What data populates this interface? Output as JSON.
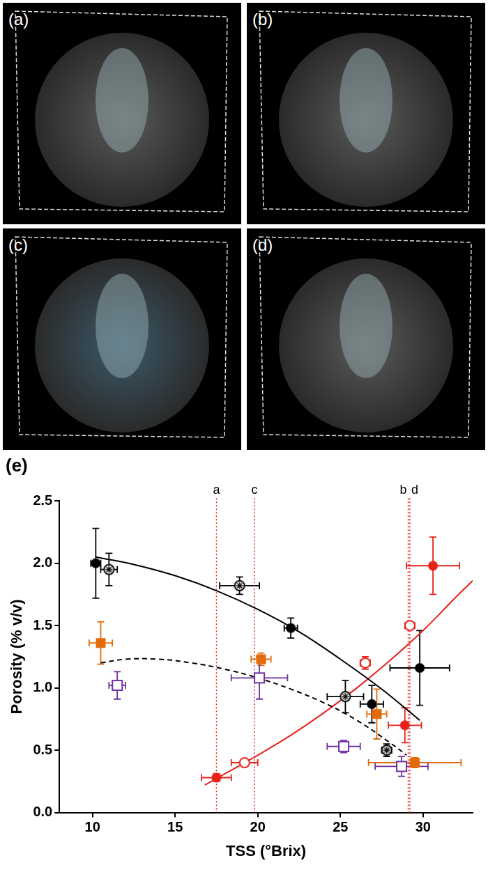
{
  "panels": [
    {
      "label": "(a)"
    },
    {
      "label": "(b)"
    },
    {
      "label": "(c)"
    },
    {
      "label": "(d)"
    }
  ],
  "chart_data": {
    "type": "scatter",
    "title": "(e)",
    "x_label": "TSS (°Brix)",
    "y_label": "Porosity (% v/v)",
    "xlim": [
      8,
      33
    ],
    "xticks": [
      10,
      15,
      20,
      25,
      30
    ],
    "ylim": [
      0,
      2.5
    ],
    "yticks": [
      {
        "value": 0,
        "label": "0.0"
      },
      0.5,
      {
        "value": 1,
        "label": "1.0"
      },
      1.5,
      {
        "value": 2,
        "label": "2.0"
      },
      2.5
    ],
    "grid": false,
    "vlines": [
      {
        "x": 17.5,
        "label": "a"
      },
      {
        "x": 19.8,
        "label": "c"
      },
      {
        "x": 29.1,
        "label": "b"
      },
      {
        "x": 29.2,
        "label": "d"
      }
    ],
    "series": [
      {
        "type": "scatter",
        "color": "#000000",
        "marker": "circle",
        "x": [
          10.2,
          22.0,
          26.9,
          29.8
        ],
        "values": [
          2.0,
          1.48,
          0.87,
          1.16
        ],
        "xerr": [
          0.3,
          0.4,
          0.7,
          1.8
        ],
        "yerr": [
          0.28,
          0.08,
          0.15,
          0.3
        ]
      },
      {
        "type": "scatter",
        "color": "#000000",
        "marker": "circle-star",
        "x": [
          11.0,
          18.9,
          25.3,
          27.8
        ],
        "values": [
          1.95,
          1.82,
          0.93,
          0.5
        ],
        "xerr": [
          0.5,
          1.2,
          1.1,
          0.3
        ],
        "yerr": [
          0.13,
          0.07,
          0.13,
          0.05
        ]
      },
      {
        "type": "scatter",
        "color": "#e36c0a",
        "marker": "square",
        "x": [
          10.5,
          20.2,
          27.2,
          29.5
        ],
        "values": [
          1.36,
          1.23,
          0.79,
          0.4
        ],
        "xerr": [
          0.7,
          0.6,
          0.6,
          2.8
        ],
        "yerr": [
          0.17,
          0.05,
          0.2,
          0.04
        ]
      },
      {
        "type": "scatter",
        "color": "#7030a0",
        "marker": "square-open",
        "x": [
          11.5,
          20.1,
          25.2,
          28.7
        ],
        "values": [
          1.02,
          1.08,
          0.53,
          0.37
        ],
        "xerr": [
          0.5,
          1.7,
          1.0,
          1.6
        ],
        "yerr": [
          0.11,
          0.17,
          0.05,
          0.08
        ]
      },
      {
        "type": "scatter",
        "color": "#e8211b",
        "marker": "circle",
        "x": [
          17.5,
          28.9,
          30.6
        ],
        "values": [
          0.28,
          0.7,
          1.98
        ],
        "xerr": [
          0.9,
          1.0,
          1.6
        ],
        "yerr": [
          0.03,
          0.14,
          0.23
        ]
      },
      {
        "type": "scatter",
        "color": "#e8211b",
        "marker": "circle-open",
        "x": [
          19.2,
          26.5,
          29.2
        ],
        "values": [
          0.4,
          1.2,
          1.5
        ],
        "xerr": [
          0.8,
          0.3,
          0.3
        ],
        "yerr": [
          0,
          0.05,
          0.03
        ]
      },
      {
        "type": "line",
        "color": "#000000",
        "marker": "none",
        "line_style": "solid",
        "x": [
          10.2,
          12.5,
          15,
          17.5,
          20,
          22.5,
          25,
          27.5,
          29.8
        ],
        "values": [
          2.05,
          1.99,
          1.9,
          1.78,
          1.63,
          1.45,
          1.23,
          0.99,
          0.74
        ]
      },
      {
        "type": "line",
        "color": "#000000",
        "marker": "none",
        "line_style": "dashed",
        "x": [
          10.5,
          12,
          14,
          16,
          18,
          20,
          22,
          24,
          26,
          28,
          29
        ],
        "values": [
          1.2,
          1.23,
          1.23,
          1.2,
          1.15,
          1.08,
          0.99,
          0.88,
          0.74,
          0.56,
          0.46
        ]
      },
      {
        "type": "line",
        "color": "#e8211b",
        "marker": "none",
        "line_style": "solid",
        "x": [
          16.8,
          18,
          20,
          22,
          24,
          26,
          28,
          30,
          32,
          33
        ],
        "values": [
          0.22,
          0.31,
          0.46,
          0.62,
          0.8,
          1.0,
          1.22,
          1.46,
          1.73,
          1.86
        ]
      }
    ]
  }
}
